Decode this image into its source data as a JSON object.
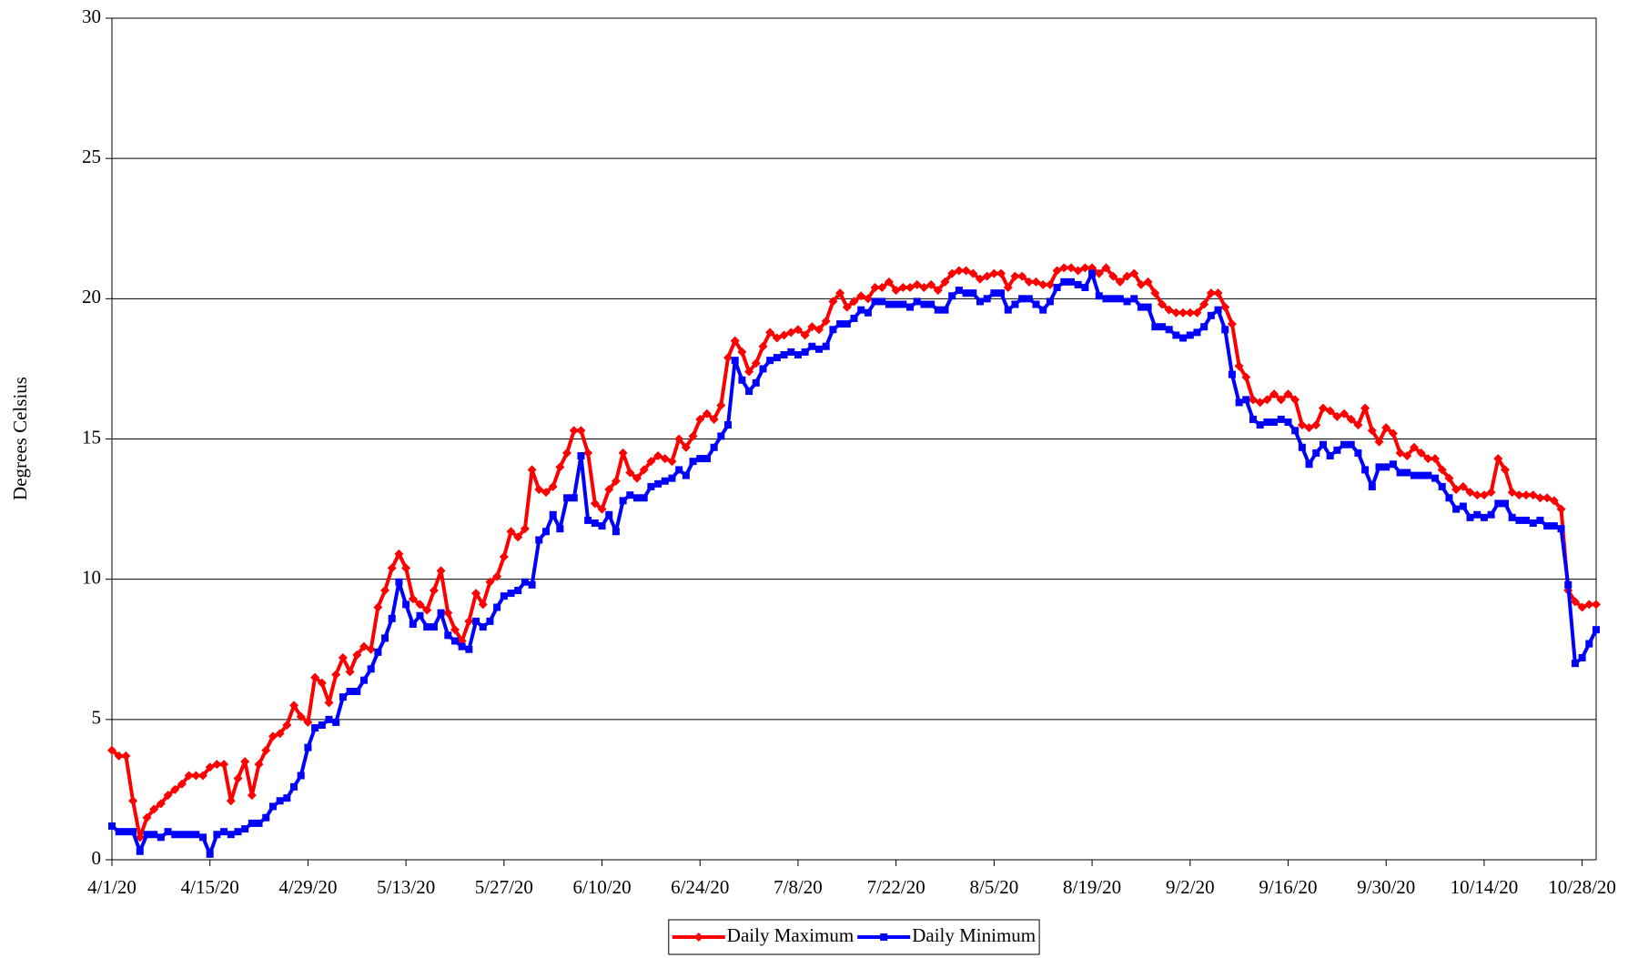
{
  "chart_data": {
    "type": "line",
    "ylabel": "Degrees Celsius",
    "x": [
      "4/1/20",
      "4/2/20",
      "4/3/20",
      "4/4/20",
      "4/5/20",
      "4/6/20",
      "4/7/20",
      "4/8/20",
      "4/9/20",
      "4/10/20",
      "4/11/20",
      "4/12/20",
      "4/13/20",
      "4/14/20",
      "4/15/20",
      "4/16/20",
      "4/17/20",
      "4/18/20",
      "4/19/20",
      "4/20/20",
      "4/21/20",
      "4/22/20",
      "4/23/20",
      "4/24/20",
      "4/25/20",
      "4/26/20",
      "4/27/20",
      "4/28/20",
      "4/29/20",
      "4/30/20",
      "5/1/20",
      "5/2/20",
      "5/3/20",
      "5/4/20",
      "5/5/20",
      "5/6/20",
      "5/7/20",
      "5/8/20",
      "5/9/20",
      "5/10/20",
      "5/11/20",
      "5/12/20",
      "5/13/20",
      "5/14/20",
      "5/15/20",
      "5/16/20",
      "5/17/20",
      "5/18/20",
      "5/19/20",
      "5/20/20",
      "5/21/20",
      "5/22/20",
      "5/23/20",
      "5/24/20",
      "5/25/20",
      "5/26/20",
      "5/27/20",
      "5/28/20",
      "5/29/20",
      "5/30/20",
      "5/31/20",
      "6/1/20",
      "6/2/20",
      "6/3/20",
      "6/4/20",
      "6/5/20",
      "6/6/20",
      "6/7/20",
      "6/8/20",
      "6/9/20",
      "6/10/20",
      "6/11/20",
      "6/12/20",
      "6/13/20",
      "6/14/20",
      "6/15/20",
      "6/16/20",
      "6/17/20",
      "6/18/20",
      "6/19/20",
      "6/20/20",
      "6/21/20",
      "6/22/20",
      "6/23/20",
      "6/24/20",
      "6/25/20",
      "6/26/20",
      "6/27/20",
      "6/28/20",
      "6/29/20",
      "6/30/20",
      "7/1/20",
      "7/2/20",
      "7/3/20",
      "7/4/20",
      "7/5/20",
      "7/6/20",
      "7/7/20",
      "7/8/20",
      "7/9/20",
      "7/10/20",
      "7/11/20",
      "7/12/20",
      "7/13/20",
      "7/14/20",
      "7/15/20",
      "7/16/20",
      "7/17/20",
      "7/18/20",
      "7/19/20",
      "7/20/20",
      "7/21/20",
      "7/22/20",
      "7/23/20",
      "7/24/20",
      "7/25/20",
      "7/26/20",
      "7/27/20",
      "7/28/20",
      "7/29/20",
      "7/30/20",
      "7/31/20",
      "8/1/20",
      "8/2/20",
      "8/3/20",
      "8/4/20",
      "8/5/20",
      "8/6/20",
      "8/7/20",
      "8/8/20",
      "8/9/20",
      "8/10/20",
      "8/11/20",
      "8/12/20",
      "8/13/20",
      "8/14/20",
      "8/15/20",
      "8/16/20",
      "8/17/20",
      "8/18/20",
      "8/19/20",
      "8/20/20",
      "8/21/20",
      "8/22/20",
      "8/23/20",
      "8/24/20",
      "8/25/20",
      "8/26/20",
      "8/27/20",
      "8/28/20",
      "8/29/20",
      "8/30/20",
      "8/31/20",
      "9/1/20",
      "9/2/20",
      "9/3/20",
      "9/4/20",
      "9/5/20",
      "9/6/20",
      "9/7/20",
      "9/8/20",
      "9/9/20",
      "9/10/20",
      "9/11/20",
      "9/12/20",
      "9/13/20",
      "9/14/20",
      "9/15/20",
      "9/16/20",
      "9/17/20",
      "9/18/20",
      "9/19/20",
      "9/20/20",
      "9/21/20",
      "9/22/20",
      "9/23/20",
      "9/24/20",
      "9/25/20",
      "9/26/20",
      "9/27/20",
      "9/28/20",
      "9/29/20",
      "9/30/20",
      "10/1/20",
      "10/2/20",
      "10/3/20",
      "10/4/20",
      "10/5/20",
      "10/6/20",
      "10/7/20",
      "10/8/20",
      "10/9/20",
      "10/10/20",
      "10/11/20",
      "10/12/20",
      "10/13/20",
      "10/14/20",
      "10/15/20",
      "10/16/20",
      "10/17/20",
      "10/18/20",
      "10/19/20",
      "10/20/20",
      "10/21/20",
      "10/22/20",
      "10/23/20",
      "10/24/20",
      "10/25/20",
      "10/26/20",
      "10/27/20",
      "10/28/20",
      "10/29/20",
      "10/30/20"
    ],
    "series": [
      {
        "name": "Daily Maximum",
        "color": "#ff0000",
        "marker": "diamond",
        "values": [
          3.9,
          3.7,
          3.7,
          2.1,
          0.8,
          1.5,
          1.8,
          2.0,
          2.3,
          2.5,
          2.7,
          3.0,
          3.0,
          3.0,
          3.3,
          3.4,
          3.4,
          2.1,
          2.9,
          3.5,
          2.3,
          3.4,
          3.9,
          4.4,
          4.5,
          4.8,
          5.5,
          5.1,
          4.9,
          6.5,
          6.3,
          5.6,
          6.6,
          7.2,
          6.7,
          7.3,
          7.6,
          7.5,
          9.0,
          9.6,
          10.4,
          10.9,
          10.4,
          9.3,
          9.1,
          8.9,
          9.6,
          10.3,
          8.8,
          8.2,
          7.8,
          8.5,
          9.5,
          9.1,
          9.9,
          10.1,
          10.8,
          11.7,
          11.5,
          11.8,
          13.9,
          13.2,
          13.1,
          13.3,
          14.0,
          14.5,
          15.3,
          15.3,
          14.5,
          12.7,
          12.5,
          13.2,
          13.5,
          14.5,
          13.8,
          13.6,
          13.9,
          14.2,
          14.4,
          14.3,
          14.2,
          15.0,
          14.7,
          15.1,
          15.7,
          15.9,
          15.7,
          16.2,
          17.9,
          18.5,
          18.1,
          17.4,
          17.7,
          18.3,
          18.8,
          18.6,
          18.7,
          18.8,
          18.9,
          18.7,
          19.0,
          18.9,
          19.2,
          19.9,
          20.2,
          19.7,
          19.9,
          20.1,
          20.0,
          20.4,
          20.4,
          20.6,
          20.3,
          20.4,
          20.4,
          20.5,
          20.4,
          20.5,
          20.3,
          20.6,
          20.9,
          21.0,
          21.0,
          20.9,
          20.7,
          20.8,
          20.9,
          20.9,
          20.4,
          20.8,
          20.8,
          20.6,
          20.6,
          20.5,
          20.5,
          21.0,
          21.1,
          21.1,
          21.0,
          21.1,
          21.1,
          20.9,
          21.1,
          20.8,
          20.6,
          20.8,
          20.9,
          20.5,
          20.6,
          20.2,
          19.8,
          19.6,
          19.5,
          19.5,
          19.5,
          19.5,
          19.8,
          20.2,
          20.2,
          19.7,
          19.1,
          17.6,
          17.2,
          16.4,
          16.3,
          16.4,
          16.6,
          16.4,
          16.6,
          16.4,
          15.5,
          15.4,
          15.5,
          16.1,
          16.0,
          15.8,
          15.9,
          15.7,
          15.5,
          16.1,
          15.3,
          14.9,
          15.4,
          15.2,
          14.5,
          14.4,
          14.7,
          14.5,
          14.3,
          14.3,
          13.9,
          13.6,
          13.2,
          13.3,
          13.1,
          13.0,
          13.0,
          13.1,
          14.3,
          13.9,
          13.1,
          13.0,
          13.0,
          13.0,
          12.9,
          12.9,
          12.8,
          12.5,
          9.6,
          9.2,
          9.0,
          9.1,
          9.1
        ]
      },
      {
        "name": "Daily Minimum",
        "color": "#0000ff",
        "marker": "square",
        "values": [
          1.2,
          1.0,
          1.0,
          1.0,
          0.3,
          0.9,
          0.9,
          0.8,
          1.0,
          0.9,
          0.9,
          0.9,
          0.9,
          0.8,
          0.2,
          0.9,
          1.0,
          0.9,
          1.0,
          1.1,
          1.3,
          1.3,
          1.5,
          1.9,
          2.1,
          2.2,
          2.6,
          3.0,
          4.0,
          4.7,
          4.8,
          5.0,
          4.9,
          5.8,
          6.0,
          6.0,
          6.4,
          6.8,
          7.4,
          7.9,
          8.6,
          9.9,
          9.1,
          8.4,
          8.7,
          8.3,
          8.3,
          8.8,
          8.0,
          7.8,
          7.6,
          7.5,
          8.5,
          8.3,
          8.5,
          9.0,
          9.4,
          9.5,
          9.6,
          9.9,
          9.8,
          11.4,
          11.7,
          12.3,
          11.8,
          12.9,
          12.9,
          14.4,
          12.1,
          12.0,
          11.9,
          12.3,
          11.7,
          12.8,
          13.0,
          12.9,
          12.9,
          13.3,
          13.4,
          13.5,
          13.6,
          13.9,
          13.7,
          14.2,
          14.3,
          14.3,
          14.7,
          15.1,
          15.5,
          17.8,
          17.1,
          16.7,
          17.0,
          17.5,
          17.8,
          17.9,
          18.0,
          18.1,
          18.0,
          18.1,
          18.3,
          18.2,
          18.3,
          18.9,
          19.1,
          19.1,
          19.3,
          19.6,
          19.5,
          19.9,
          19.9,
          19.8,
          19.8,
          19.8,
          19.7,
          19.9,
          19.8,
          19.8,
          19.6,
          19.6,
          20.1,
          20.3,
          20.2,
          20.2,
          19.9,
          20.0,
          20.2,
          20.2,
          19.6,
          19.8,
          20.0,
          20.0,
          19.8,
          19.6,
          19.9,
          20.4,
          20.6,
          20.6,
          20.5,
          20.4,
          20.9,
          20.1,
          20.0,
          20.0,
          20.0,
          19.9,
          20.0,
          19.7,
          19.7,
          19.0,
          19.0,
          18.9,
          18.7,
          18.6,
          18.7,
          18.8,
          19.0,
          19.4,
          19.6,
          18.9,
          17.3,
          16.3,
          16.4,
          15.7,
          15.5,
          15.6,
          15.6,
          15.7,
          15.6,
          15.3,
          14.7,
          14.1,
          14.5,
          14.8,
          14.4,
          14.6,
          14.8,
          14.8,
          14.5,
          13.9,
          13.3,
          14.0,
          14.0,
          14.1,
          13.8,
          13.8,
          13.7,
          13.7,
          13.7,
          13.6,
          13.3,
          12.9,
          12.5,
          12.6,
          12.2,
          12.3,
          12.2,
          12.3,
          12.7,
          12.7,
          12.2,
          12.1,
          12.1,
          12.0,
          12.1,
          11.9,
          11.9,
          11.8,
          9.8,
          7.0,
          7.2,
          7.7,
          8.2
        ]
      }
    ],
    "xlim": [
      "4/1/20",
      "10/30/20"
    ],
    "xticks": [
      "4/1/20",
      "4/15/20",
      "4/29/20",
      "5/13/20",
      "5/27/20",
      "6/10/20",
      "6/24/20",
      "7/8/20",
      "7/22/20",
      "8/5/20",
      "8/19/20",
      "9/2/20",
      "9/16/20",
      "9/30/20",
      "10/14/20",
      "10/28/20"
    ],
    "ylim": [
      0,
      30
    ],
    "yticks": [
      0,
      5,
      10,
      15,
      20,
      25,
      30
    ],
    "grid": true,
    "legend": "bottom"
  }
}
